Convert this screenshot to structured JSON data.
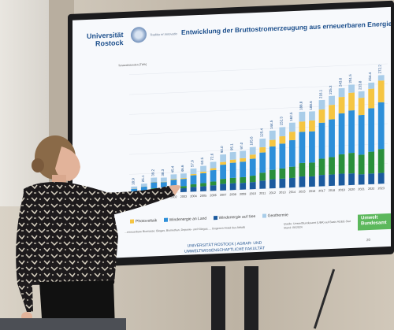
{
  "slide": {
    "university": "Universität\nRostock",
    "motto": "Traditio et Innovatio",
    "title": "Entwicklung der Bruttostromerzeugung aus erneuerbaren Energien",
    "ylabel": "Terawattstunden [TWh]",
    "legend": [
      "Photovoltaik",
      "Windenergie an Land",
      "Windenergie auf See",
      "Geothermie"
    ],
    "note": "...erneuerbare Biomasse: Biogas, Biomethan, Deponie- und Klärgas, ... biogenen Anteil des Abfalls",
    "source": "Quelle: Umweltbundesamt (UBA) auf Basis AGEE-Stat\nStand: 06/2024",
    "logo": "Umwelt\nBundesamt",
    "footer": "UNIVERSITÄT ROSTOCK | AGRAR- UND\nUMWELTWISSENSCHAFTLICHE FAKULTÄT",
    "page": "20"
  },
  "chart_data": {
    "type": "bar",
    "categories": [
      "1990",
      "1995",
      "2000",
      "2001",
      "2002",
      "2003",
      "2004",
      "2005",
      "2006",
      "2007",
      "2008",
      "2009",
      "2010",
      "2011",
      "2012",
      "2013",
      "2014",
      "2015",
      "2016",
      "2017",
      "2018",
      "2019",
      "2020",
      "2021",
      "2022",
      "2023"
    ],
    "values": [
      18.9,
      25.1,
      39.2,
      38.3,
      45.4,
      46.6,
      57.9,
      63.5,
      72.6,
      90.0,
      95.1,
      97.0,
      105.6,
      125.4,
      144.5,
      152.3,
      162.5,
      188.8,
      188.6,
      216.1,
      225.3,
      243.6,
      251.5,
      233.8,
      254.4,
      272.2
    ],
    "colors": {
      "hydro": "#1b5a9e",
      "bio": "#2a8f3c",
      "wind_land": "#2d8fd9",
      "pv": "#f5c542",
      "light": "#a9cde9"
    }
  }
}
